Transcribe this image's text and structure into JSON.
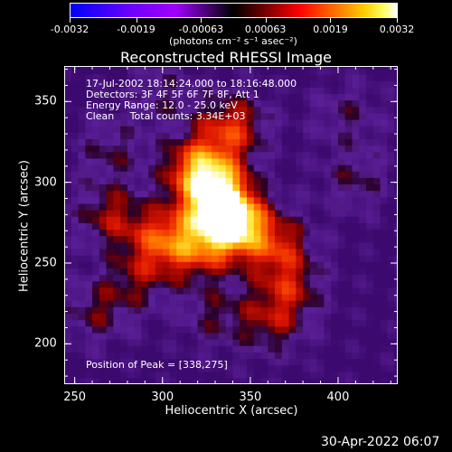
{
  "colorbar": {
    "tick_labels": [
      "-0.0032",
      "-0.0019",
      "-0.00063",
      "0.00063",
      "0.0019",
      "0.0032"
    ],
    "tick_values": [
      -0.0032,
      -0.0019,
      -0.00063,
      0.00063,
      0.0019,
      0.0032
    ],
    "range": [
      -0.0032,
      0.0032
    ],
    "units_label": "(photons cm⁻² s⁻¹ asec⁻²)",
    "colormap": [
      "#0000ff",
      "#a000ff",
      "#000000",
      "#ff0000",
      "#ff7a00",
      "#ffcc00",
      "#ffffff"
    ]
  },
  "chart_data": {
    "type": "heatmap",
    "title": "Reconstructed RHESSI Image",
    "xlabel": "Heliocentric X (arcsec)",
    "ylabel": "Heliocentric Y (arcsec)",
    "xlim": [
      244,
      434
    ],
    "ylim": [
      175,
      372
    ],
    "x_ticks": [
      250,
      300,
      350,
      400
    ],
    "y_ticks": [
      200,
      250,
      300,
      350
    ],
    "x_tick_labels": [
      "250",
      "300",
      "350",
      "400"
    ],
    "y_tick_labels": [
      "200",
      "250",
      "300",
      "350"
    ],
    "info_lines": [
      "17-Jul-2002 18:14:24.000 to 18:16:48.000",
      "Detectors: 3F 4F 5F 6F 7F 8F, Att 1",
      "Energy Range: 12.0 - 25.0 keV",
      "Clean     Total counts: 3.34E+03"
    ],
    "peak_label": "Position of Peak = [338,275]",
    "peak": [
      338,
      275
    ],
    "sources": [
      {
        "x": 338,
        "y": 275,
        "value": 0.0032
      },
      {
        "x": 330,
        "y": 295,
        "value": 0.0022
      },
      {
        "x": 320,
        "y": 310,
        "value": 0.0018
      },
      {
        "x": 340,
        "y": 335,
        "value": 0.0016
      },
      {
        "x": 300,
        "y": 265,
        "value": 0.0016
      },
      {
        "x": 270,
        "y": 280,
        "value": 0.0012
      },
      {
        "x": 365,
        "y": 262,
        "value": 0.0014
      },
      {
        "x": 372,
        "y": 235,
        "value": 0.0012
      },
      {
        "x": 362,
        "y": 212,
        "value": 0.001
      },
      {
        "x": 262,
        "y": 220,
        "value": 0.0009
      },
      {
        "x": 285,
        "y": 240,
        "value": 0.0009
      },
      {
        "x": 320,
        "y": 258,
        "value": 0.0012
      },
      {
        "x": 330,
        "y": 218,
        "value": 0.0008
      },
      {
        "x": 270,
        "y": 320,
        "value": 0.0008
      },
      {
        "x": 300,
        "y": 355,
        "value": 0.0007
      },
      {
        "x": 410,
        "y": 302,
        "value": 0.0008
      },
      {
        "x": 405,
        "y": 342,
        "value": 0.0007
      }
    ]
  },
  "timestamp": "30-Apr-2022 06:07"
}
